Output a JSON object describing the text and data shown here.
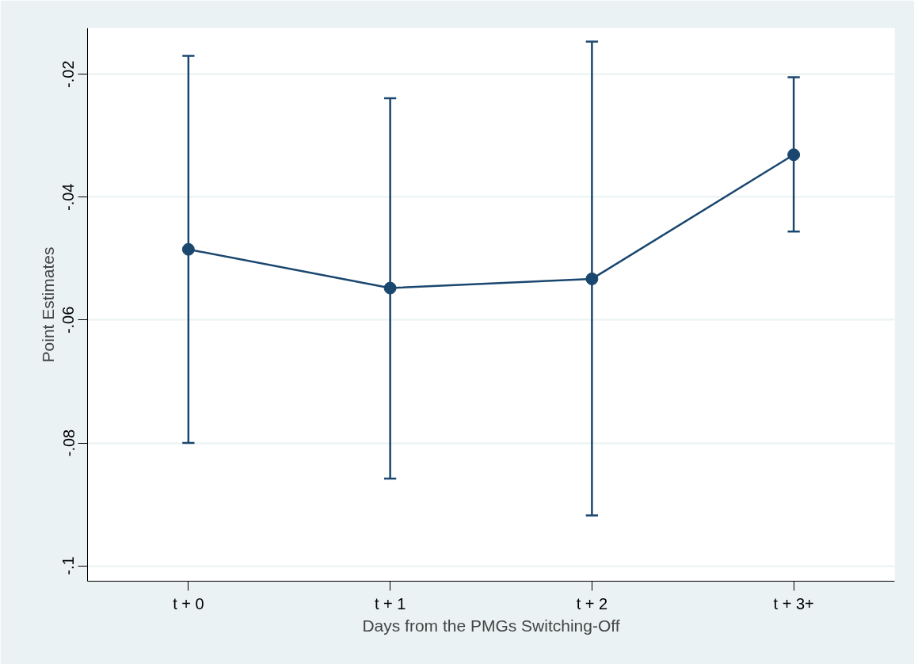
{
  "chart_data": {
    "type": "line",
    "xlabel": "Days from the PMGs Switching-Off",
    "ylabel": "Point Estimates",
    "categories": [
      "t + 0",
      "t + 1",
      "t + 2",
      "t + 3+"
    ],
    "series": [
      {
        "color": "#1a476f",
        "values": [
          -0.0485,
          -0.0548,
          -0.0533,
          -0.0331
        ],
        "errors": [
          [
            -0.08,
            -0.017
          ],
          [
            -0.0858,
            -0.0239
          ],
          [
            -0.0918,
            -0.0147
          ],
          [
            -0.0456,
            -0.0205
          ]
        ]
      }
    ],
    "ylim": [
      -0.1025,
      -0.0125
    ],
    "yticks": [
      {
        "value": -0.1,
        "label": "-.1"
      },
      {
        "value": -0.08,
        "label": "-.08"
      },
      {
        "value": -0.06,
        "label": "-.06"
      },
      {
        "value": -0.04,
        "label": "-.04"
      },
      {
        "value": -0.02,
        "label": "-.02"
      }
    ],
    "grid": "y",
    "marker": "circle",
    "line_style": "solid"
  }
}
